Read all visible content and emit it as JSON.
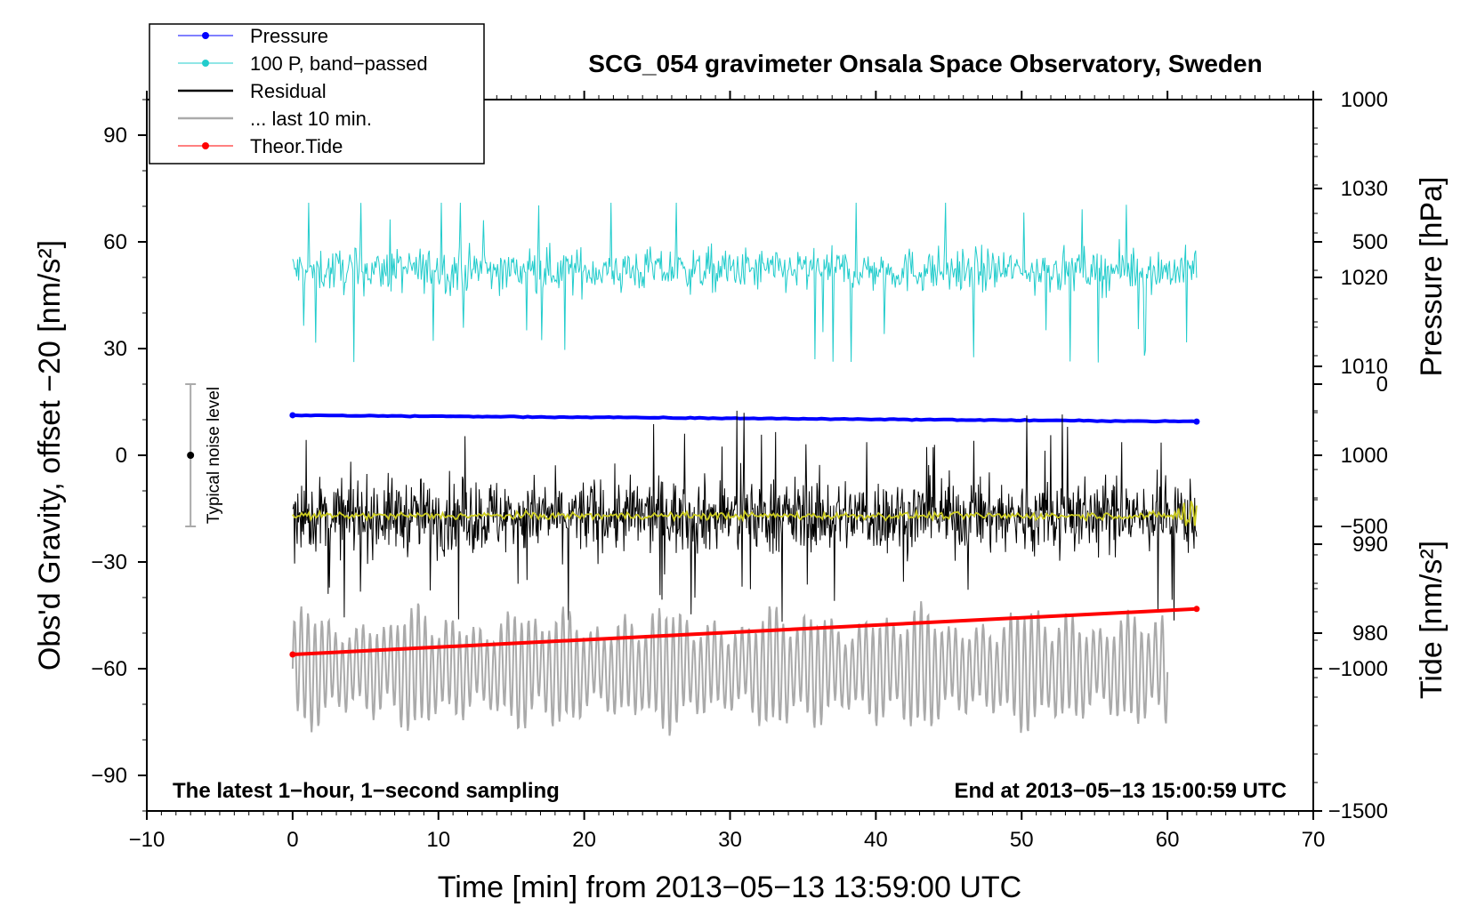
{
  "chart_data": {
    "type": "line",
    "title": "SCG_054 gravimeter Onsala Space Observatory, Sweden",
    "xlabel": "Time [min] from 2013−05−13 13:59:00 UTC",
    "ylabel": "Obs'd Gravity, offset −20 [nm/s²]",
    "y2label": "Pressure [hPa]",
    "y3label": "Tide [nm/s²]",
    "xlim": [
      -10,
      70
    ],
    "ylim": [
      -100,
      100
    ],
    "pressure_axis_range": [
      960,
      1040
    ],
    "tide_axis_range": [
      -1500,
      1000
    ],
    "x_ticks": [
      "−10",
      "0",
      "10",
      "20",
      "30",
      "40",
      "50",
      "60",
      "70"
    ],
    "x_tick_values": [
      -10,
      0,
      10,
      20,
      30,
      40,
      50,
      60,
      70
    ],
    "y_ticks": [
      "90",
      "60",
      "30",
      "0",
      "−30",
      "−60",
      "−90"
    ],
    "y_tick_values": [
      90,
      60,
      30,
      0,
      -30,
      -60,
      -90
    ],
    "pressure_ticks": [
      "1030",
      "1020",
      "1010",
      "1000",
      "990",
      "980"
    ],
    "pressure_tick_values": [
      1030,
      1020,
      1010,
      1000,
      990,
      980
    ],
    "tide_ticks": [
      "1000",
      "500",
      "0",
      "−500",
      "−1000",
      "−1500"
    ],
    "tide_tick_values": [
      1000,
      500,
      0,
      -500,
      -1000,
      -1500
    ],
    "legend": [
      {
        "label": "Pressure",
        "color": "#0000ff",
        "marker": true
      },
      {
        "label": "100 P, band−passed",
        "color": "#22cccc",
        "marker": true
      },
      {
        "label": "Residual",
        "color": "#000000",
        "marker": false
      },
      {
        "label": "... last 10 min.",
        "color": "#aaaaaa",
        "marker": false
      },
      {
        "label": "Theor.Tide",
        "color": "#ff0000",
        "marker": true
      }
    ],
    "noise_level": {
      "label": "Typical noise level",
      "x": -7,
      "y_center": 0,
      "y_range": [
        -20,
        20
      ]
    },
    "annotations": {
      "left": "The latest 1−hour, 1−second sampling",
      "right": "End at 2013−05−13 15:00:59 UTC"
    },
    "series": [
      {
        "name": "Pressure",
        "axis": "pressure",
        "color": "#0000ff",
        "x_range": [
          0,
          62
        ],
        "start": 1004.5,
        "end": 1003.8,
        "unit": "hPa"
      },
      {
        "name": "100 P, band−passed",
        "axis": "gravity",
        "color": "#22cccc",
        "x_range": [
          0,
          62
        ],
        "center": 52,
        "typical_amplitude": 6,
        "min": 20,
        "max": 71
      },
      {
        "name": "Residual",
        "axis": "gravity",
        "color": "#000000",
        "x_range": [
          0,
          62
        ],
        "center": -17,
        "typical_amplitude": 10,
        "min": -49,
        "max": 13
      },
      {
        "name": "Residual smoothed",
        "axis": "gravity",
        "color": "#cccc22",
        "x_range": [
          0,
          62
        ],
        "center": -17,
        "typical_amplitude": 1
      },
      {
        "name": "... last 10 min.",
        "axis": "gravity",
        "color": "#aaaaaa",
        "x_range": [
          0,
          60
        ],
        "center": -60,
        "typical_amplitude": 12,
        "min": -87,
        "max": -40
      },
      {
        "name": "Theor.Tide",
        "axis": "tide",
        "color": "#ff0000",
        "x_range": [
          0,
          62
        ],
        "start": -950,
        "end": -790,
        "unit": "nm/s²"
      }
    ]
  },
  "colors": {
    "pressure": "#0000ff",
    "bandpassed": "#22cccc",
    "residual": "#000000",
    "smoothed": "#cccc22",
    "last10": "#aaaaaa",
    "tide": "#ff0000",
    "noise_bar": "#aaaaaa"
  }
}
